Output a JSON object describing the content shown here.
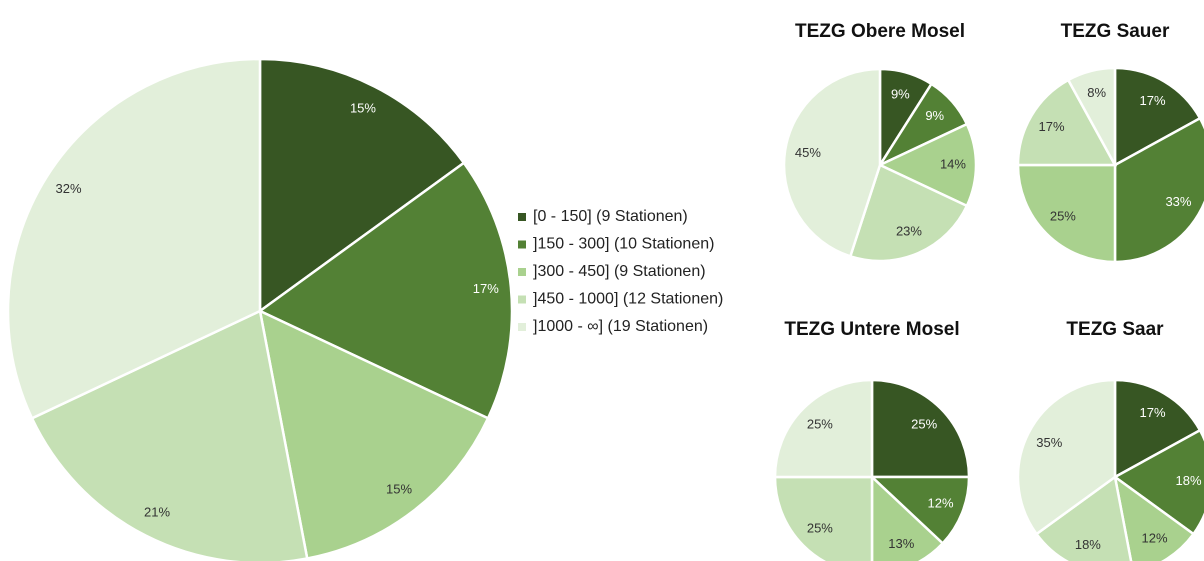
{
  "chart_data": [
    {
      "type": "pie",
      "categories": [
        "[0 - 150] (9 Stationen)",
        "]150 - 300] (10 Stationen)",
        "]300 - 450] (9 Stationen)",
        "]450 - 1000] (12 Stationen)",
        "]1000 - ∞] (19 Stationen)"
      ],
      "values": [
        15,
        17,
        15,
        21,
        32
      ],
      "value_labels": [
        "15%",
        "17%",
        "15%",
        "21%",
        "32%"
      ],
      "colors": [
        "#375623",
        "#538135",
        "#a9d18e",
        "#c5e0b4",
        "#e2efda"
      ],
      "legend": "right"
    },
    {
      "type": "pie",
      "title": "TEZG Obere Mosel",
      "values": [
        9,
        9,
        14,
        23,
        45
      ],
      "value_labels": [
        "9%",
        "9%",
        "14%",
        "23%",
        "45%"
      ],
      "colors": [
        "#375623",
        "#538135",
        "#a9d18e",
        "#c5e0b4",
        "#e2efda"
      ]
    },
    {
      "type": "pie",
      "title": "TEZG Sauer",
      "values": [
        17,
        33,
        25,
        17,
        8
      ],
      "value_labels": [
        "17%",
        "33%",
        "25%",
        "17%",
        "8%"
      ],
      "colors": [
        "#375623",
        "#538135",
        "#a9d18e",
        "#c5e0b4",
        "#e2efda"
      ]
    },
    {
      "type": "pie",
      "title": "TEZG Untere Mosel",
      "values": [
        25,
        12,
        13,
        25,
        25
      ],
      "value_labels": [
        "25%",
        "12%",
        "13%",
        "25%",
        "25%"
      ],
      "colors": [
        "#375623",
        "#538135",
        "#a9d18e",
        "#c5e0b4",
        "#e2efda"
      ]
    },
    {
      "type": "pie",
      "title": "TEZG Saar",
      "values": [
        17,
        18,
        12,
        18,
        35
      ],
      "value_labels": [
        "17%",
        "18%",
        "12%",
        "18%",
        "35%"
      ],
      "colors": [
        "#375623",
        "#538135",
        "#a9d18e",
        "#c5e0b4",
        "#e2efda"
      ]
    }
  ]
}
